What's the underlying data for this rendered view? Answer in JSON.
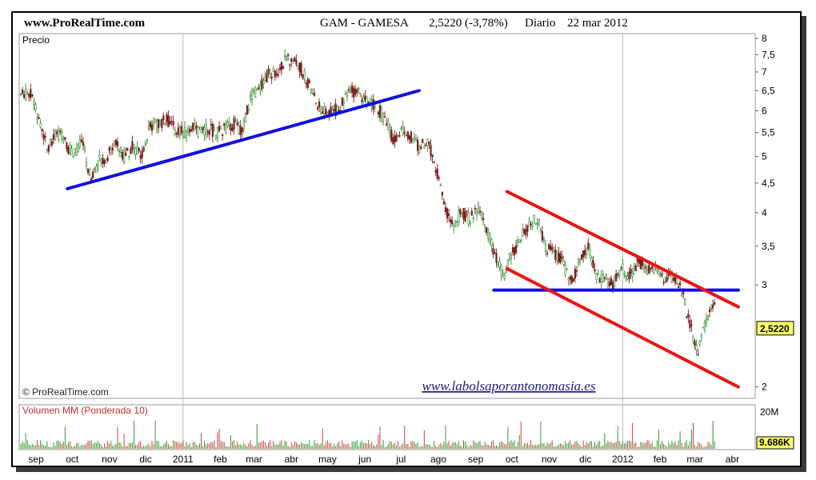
{
  "header": {
    "site": "www.ProRealTime.com",
    "ticker": "GAM - GAMESA",
    "price": "2,5220 (-3,78%)",
    "period": "Diario",
    "date": "22 mar 2012"
  },
  "price_panel": {
    "title": "Precio",
    "copyright": "© ProRealTime.com",
    "watermark": "www.labolsaporantonomasia.es",
    "last_price_label": "2,5220"
  },
  "volume_panel": {
    "title": "Volumen MM (Ponderada 10)",
    "max_label": "20M",
    "last_label": "9.686K"
  },
  "colors": {
    "support_line": "#1010e0",
    "channel_line": "#ee1111",
    "candle_up": "#2c8c2c",
    "candle_down": "#7a1f1f",
    "volume_bar": "#d04040",
    "volume_bar_alt": "#2e9a2e",
    "label_bg": "#ffff66"
  },
  "chart_data": {
    "type": "line",
    "y_scale": "log",
    "y_ticks": [
      "8",
      "7,5",
      "7",
      "6,5",
      "6",
      "5,5",
      "5",
      "4,5",
      "4",
      "3,5",
      "3",
      "2,5220",
      "2"
    ],
    "x_ticks": [
      "sep",
      "oct",
      "nov",
      "dic",
      "2011",
      "feb",
      "mar",
      "abr",
      "may",
      "jun",
      "jul",
      "ago",
      "sep",
      "oct",
      "nov",
      "dic",
      "2012",
      "feb",
      "mar",
      "abr"
    ],
    "series": [
      {
        "values": [
          [
            "2010-09-01",
            6.4
          ],
          [
            "2010-09-08",
            5.7
          ],
          [
            "2010-09-15",
            5.2
          ],
          [
            "2010-09-22",
            5.5
          ],
          [
            "2010-09-29",
            5.3
          ],
          [
            "2010-10-06",
            5.0
          ],
          [
            "2010-10-13",
            5.3
          ],
          [
            "2010-10-20",
            4.6
          ],
          [
            "2010-10-27",
            4.9
          ],
          [
            "2010-11-03",
            5.0
          ],
          [
            "2010-11-10",
            5.3
          ],
          [
            "2010-11-17",
            5.0
          ],
          [
            "2010-11-24",
            5.2
          ],
          [
            "2010-12-01",
            5.0
          ],
          [
            "2010-12-08",
            5.6
          ],
          [
            "2010-12-15",
            5.7
          ],
          [
            "2010-12-22",
            5.8
          ],
          [
            "2010-12-29",
            5.6
          ],
          [
            "2011-01-05",
            5.5
          ],
          [
            "2011-01-12",
            5.6
          ],
          [
            "2011-01-19",
            5.5
          ],
          [
            "2011-01-26",
            5.6
          ],
          [
            "2011-02-02",
            5.5
          ],
          [
            "2011-02-09",
            5.6
          ],
          [
            "2011-02-16",
            5.7
          ],
          [
            "2011-02-23",
            5.5
          ],
          [
            "2011-03-02",
            6.3
          ],
          [
            "2011-03-09",
            6.6
          ],
          [
            "2011-03-16",
            6.9
          ],
          [
            "2011-03-23",
            7.0
          ],
          [
            "2011-03-30",
            7.3
          ],
          [
            "2011-04-06",
            7.4
          ],
          [
            "2011-04-13",
            7.1
          ],
          [
            "2011-04-20",
            6.6
          ],
          [
            "2011-04-27",
            6.1
          ],
          [
            "2011-05-04",
            6.0
          ],
          [
            "2011-05-11",
            6.0
          ],
          [
            "2011-05-18",
            6.2
          ],
          [
            "2011-05-25",
            6.5
          ],
          [
            "2011-06-01",
            6.4
          ],
          [
            "2011-06-08",
            6.2
          ],
          [
            "2011-06-15",
            6.1
          ],
          [
            "2011-06-22",
            5.8
          ],
          [
            "2011-06-29",
            5.3
          ],
          [
            "2011-07-06",
            5.6
          ],
          [
            "2011-07-13",
            5.4
          ],
          [
            "2011-07-20",
            5.2
          ],
          [
            "2011-07-27",
            5.3
          ],
          [
            "2011-08-03",
            4.8
          ],
          [
            "2011-08-10",
            4.1
          ],
          [
            "2011-08-17",
            3.8
          ],
          [
            "2011-08-24",
            4.0
          ],
          [
            "2011-08-31",
            3.9
          ],
          [
            "2011-09-07",
            4.1
          ],
          [
            "2011-09-14",
            3.7
          ],
          [
            "2011-09-21",
            3.4
          ],
          [
            "2011-09-28",
            3.1
          ],
          [
            "2011-10-05",
            3.4
          ],
          [
            "2011-10-12",
            3.6
          ],
          [
            "2011-10-19",
            3.8
          ],
          [
            "2011-10-26",
            3.9
          ],
          [
            "2011-11-02",
            3.5
          ],
          [
            "2011-11-09",
            3.4
          ],
          [
            "2011-11-16",
            3.3
          ],
          [
            "2011-11-23",
            3.0
          ],
          [
            "2011-11-30",
            3.3
          ],
          [
            "2011-12-07",
            3.5
          ],
          [
            "2011-12-14",
            3.1
          ],
          [
            "2011-12-21",
            3.1
          ],
          [
            "2011-12-28",
            3.0
          ],
          [
            "2012-01-04",
            3.2
          ],
          [
            "2012-01-11",
            3.1
          ],
          [
            "2012-01-18",
            3.3
          ],
          [
            "2012-01-25",
            3.2
          ],
          [
            "2012-02-01",
            3.2
          ],
          [
            "2012-02-08",
            3.1
          ],
          [
            "2012-02-15",
            3.1
          ],
          [
            "2012-02-22",
            3.0
          ],
          [
            "2012-02-29",
            2.6
          ],
          [
            "2012-03-07",
            2.3
          ],
          [
            "2012-03-14",
            2.6
          ],
          [
            "2012-03-21",
            2.8
          ],
          [
            "2012-03-22",
            2.522
          ]
        ]
      }
    ],
    "trend_lines": [
      {
        "color": "blue",
        "from": [
          "2010-10-01",
          4.4
        ],
        "to": [
          "2011-07-20",
          6.5
        ]
      },
      {
        "color": "blue",
        "from": [
          "2011-09-20",
          2.94
        ],
        "to": [
          "2012-04-10",
          2.94
        ]
      },
      {
        "color": "red",
        "from": [
          "2011-10-01",
          4.35
        ],
        "to": [
          "2012-04-10",
          2.75
        ]
      },
      {
        "color": "red",
        "from": [
          "2011-10-01",
          3.2
        ],
        "to": [
          "2012-04-10",
          2.0
        ]
      }
    ]
  }
}
